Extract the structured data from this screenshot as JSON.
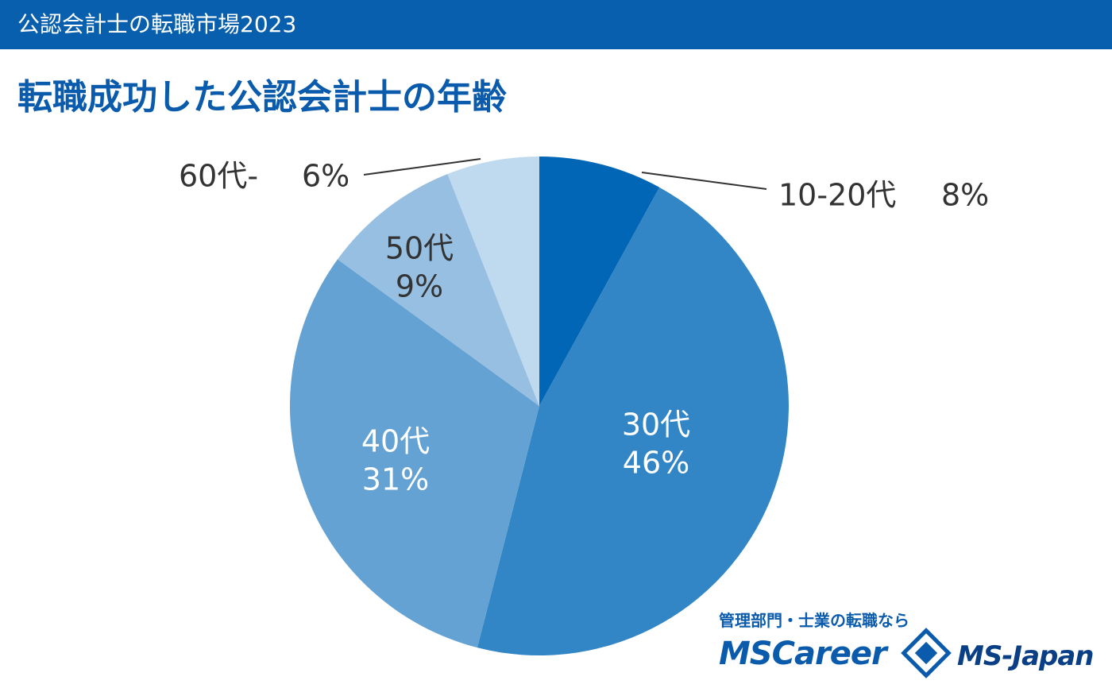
{
  "header": {
    "title": "公認会計士の転職市場2023"
  },
  "chart_data": {
    "type": "pie",
    "title": "転職成功した公認会計士の年齢",
    "categories": [
      "10-20代",
      "30代",
      "40代",
      "50代",
      "60代-"
    ],
    "values": [
      8,
      46,
      31,
      9,
      6
    ],
    "value_labels": [
      "8%",
      "46%",
      "31%",
      "9%",
      "6%"
    ],
    "colors": [
      "#0066b5",
      "#3386c6",
      "#64a2d3",
      "#96bfe2",
      "#bfd9ee"
    ]
  },
  "logo": {
    "tagline": "管理部門・士業の転職なら",
    "brand1": "MSCareer",
    "brand2": "MS-Japan"
  }
}
